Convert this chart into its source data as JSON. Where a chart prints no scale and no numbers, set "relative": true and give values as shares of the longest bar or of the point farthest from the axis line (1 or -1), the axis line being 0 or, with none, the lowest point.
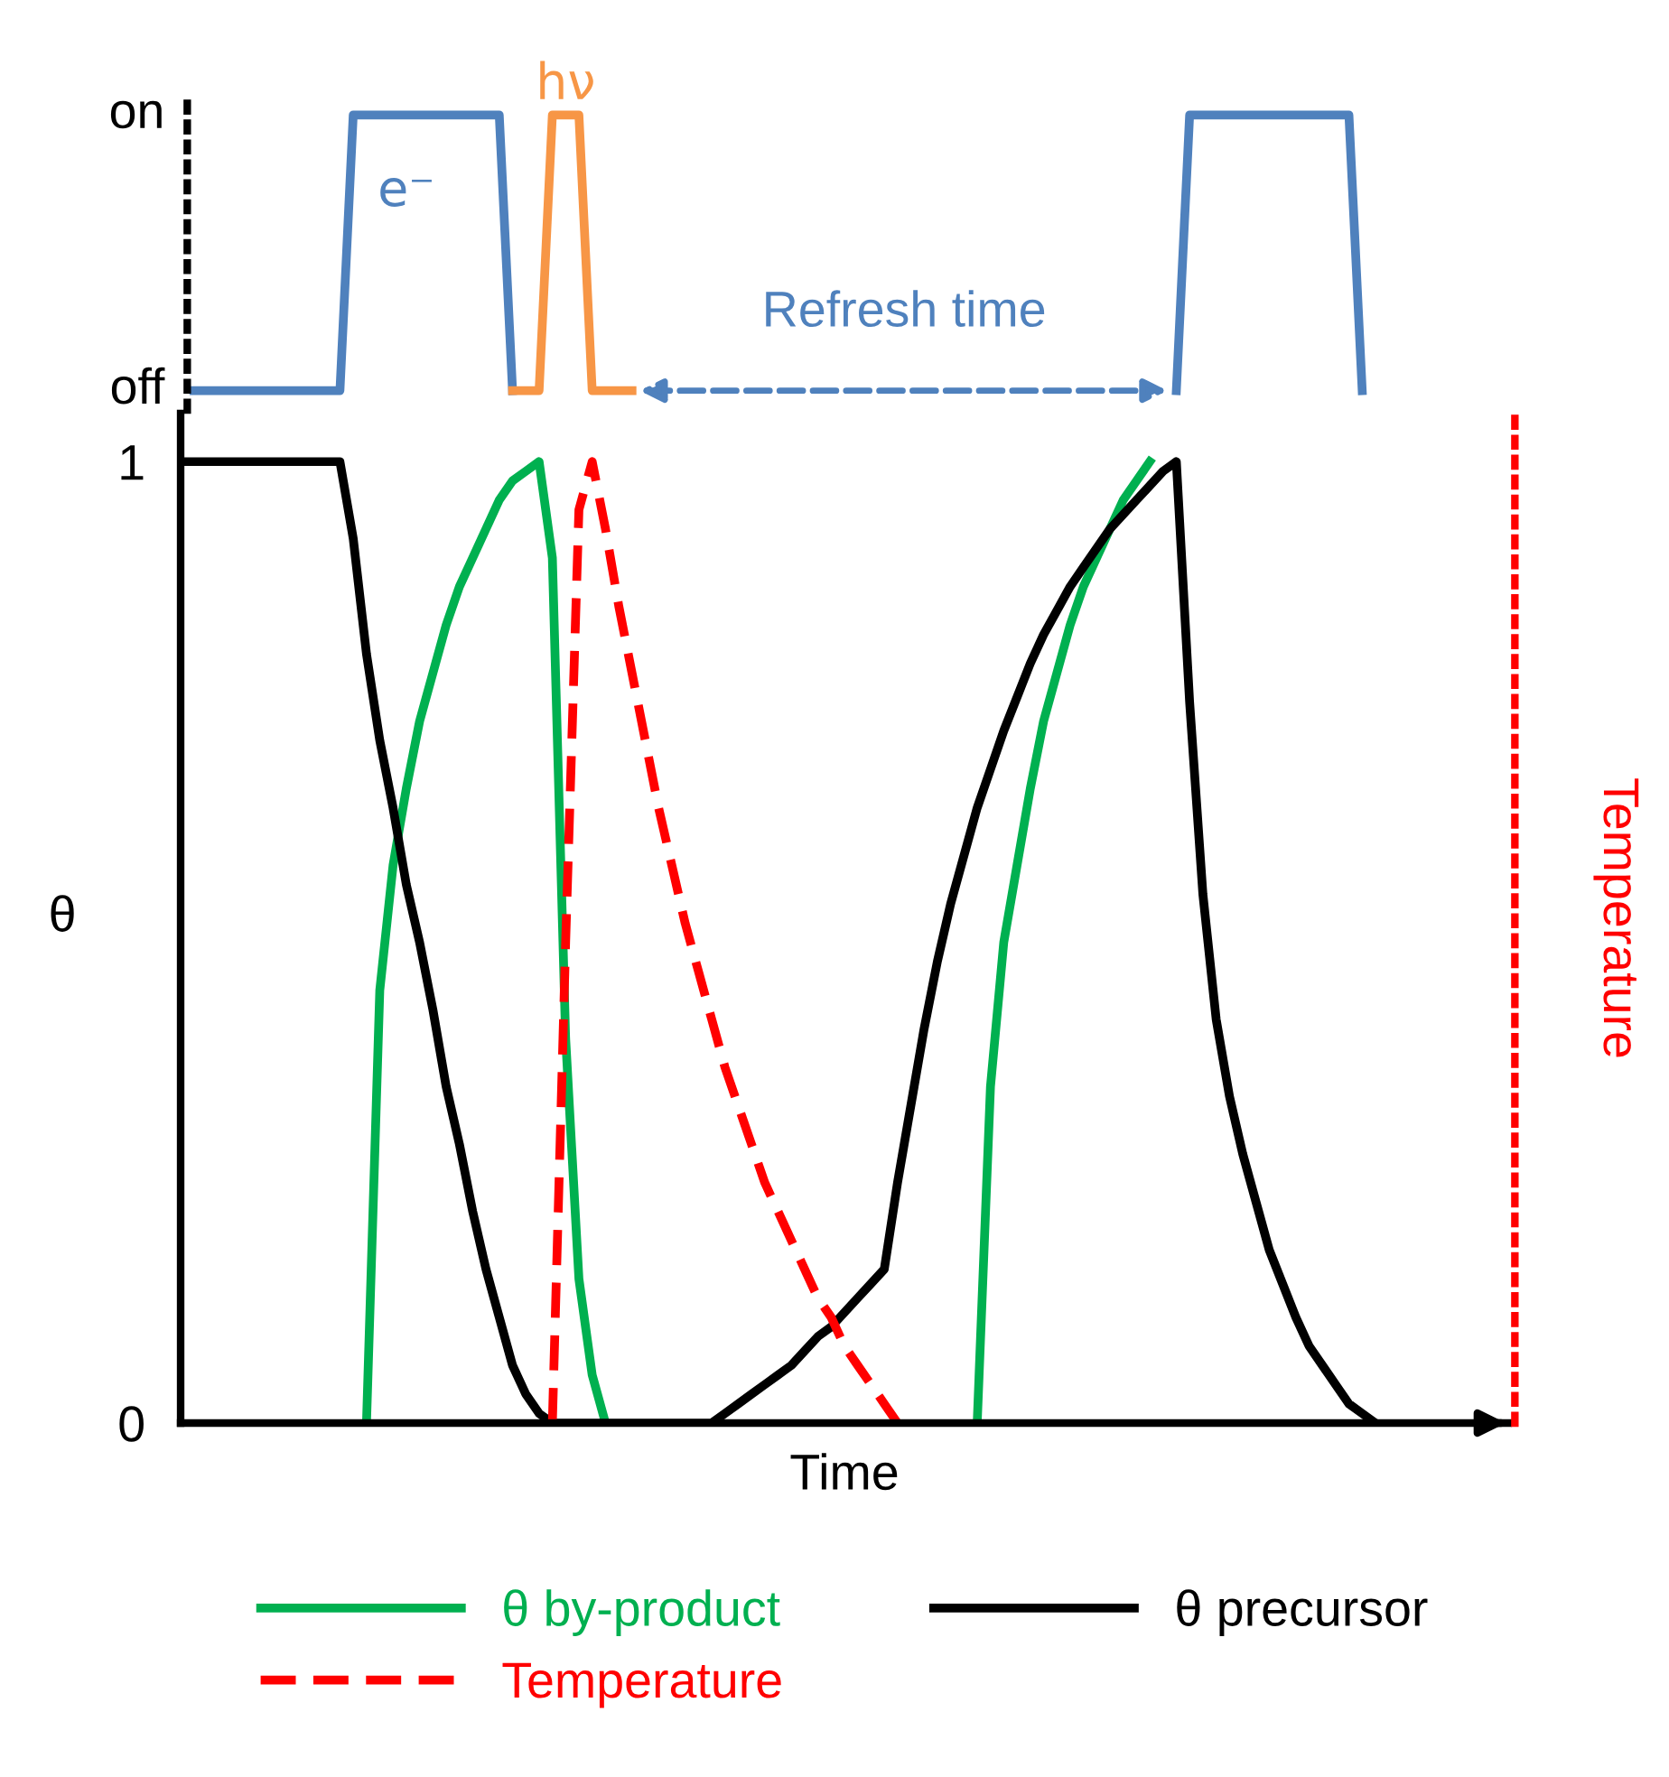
{
  "chart_data": [
    {
      "type": "line",
      "categories": [
        null,
        null,
        null,
        null,
        null,
        null,
        null,
        null,
        null,
        null,
        null,
        null,
        null,
        null,
        null,
        null,
        null,
        null,
        null,
        null,
        null,
        null,
        null,
        null,
        null,
        null,
        null,
        null,
        null,
        null,
        null,
        null,
        null,
        null,
        null,
        null,
        null,
        null,
        null,
        null,
        null,
        null,
        null,
        null,
        null,
        null,
        null,
        null,
        null,
        null,
        null,
        null,
        null,
        null,
        null,
        null,
        null,
        null,
        null,
        null,
        null,
        null,
        null,
        null,
        null,
        null,
        null,
        null,
        null,
        null,
        null,
        null,
        null,
        null,
        null,
        null,
        null,
        null,
        null,
        null,
        null,
        null,
        null,
        null,
        null,
        null,
        null,
        null,
        null,
        null,
        null,
        null,
        null,
        null,
        null,
        null,
        null,
        null,
        null,
        null,
        null
      ],
      "relative": true,
      "tick_labels": false,
      "grid": false,
      "annotations": [
        "off",
        "on",
        "Refresh time"
      ],
      "series": [
        {
          "name": "e⁻",
          "color": "#4f81bd",
          "values": [
            null,
            0,
            0,
            0,
            0,
            0,
            0,
            0,
            0,
            0,
            0,
            0,
            0,
            1,
            1,
            1,
            1,
            1,
            1,
            1,
            1,
            1,
            1,
            1,
            1,
            0,
            null,
            null,
            null,
            null,
            null,
            null,
            null,
            null,
            null,
            null,
            null,
            null,
            null,
            null,
            null,
            null,
            null,
            null,
            null,
            null,
            null,
            null,
            null,
            null,
            null,
            null,
            null,
            null,
            null,
            null,
            null,
            null,
            null,
            null,
            null,
            null,
            null,
            null,
            null,
            null,
            null,
            null,
            null,
            null,
            null,
            null,
            null,
            null,
            null,
            0,
            1,
            1,
            1,
            1,
            1,
            1,
            1,
            1,
            1,
            1,
            1,
            1,
            1,
            0,
            null,
            null,
            null,
            null,
            null,
            null,
            null,
            null,
            null,
            null,
            null
          ]
        },
        {
          "name": "hν",
          "color": "#f79646",
          "values": [
            null,
            null,
            null,
            null,
            null,
            null,
            null,
            null,
            null,
            null,
            null,
            null,
            null,
            null,
            null,
            null,
            null,
            null,
            null,
            null,
            null,
            null,
            null,
            null,
            null,
            0,
            0,
            0,
            1,
            1,
            1,
            0,
            0,
            0,
            0,
            null,
            null,
            null,
            null,
            null,
            null,
            null,
            null,
            null,
            null,
            null,
            null,
            null,
            null,
            null,
            null,
            null,
            null,
            null,
            null,
            null,
            null,
            null,
            null,
            null,
            null,
            null,
            null,
            null,
            null,
            null,
            null,
            null,
            null,
            null,
            null,
            null,
            null,
            null,
            null,
            null,
            null,
            null,
            null,
            null,
            null,
            null,
            null,
            null,
            null,
            null,
            null,
            null,
            null,
            null,
            null,
            null,
            null,
            null,
            null,
            null,
            null,
            null,
            null,
            null,
            null
          ]
        }
      ]
    },
    {
      "type": "line",
      "categories": [
        null,
        null,
        null,
        null,
        null,
        null,
        null,
        null,
        null,
        null,
        null,
        null,
        null,
        null,
        null,
        null,
        null,
        null,
        null,
        null,
        null,
        null,
        null,
        null,
        null,
        null,
        null,
        null,
        null,
        null,
        null,
        null,
        null,
        null,
        null,
        null,
        null,
        null,
        null,
        null,
        null,
        null,
        null,
        null,
        null,
        null,
        null,
        null,
        null,
        null,
        null,
        null,
        null,
        null,
        null,
        null,
        null,
        null,
        null,
        null,
        null,
        null,
        null,
        null,
        null,
        null,
        null,
        null,
        null,
        null,
        null,
        null,
        null,
        null,
        null,
        null,
        null,
        null,
        null,
        null,
        null,
        null,
        null,
        null,
        null,
        null,
        null,
        null,
        null,
        null,
        null,
        null,
        null,
        null,
        null,
        null,
        null,
        null,
        null,
        null,
        null
      ],
      "ylim": [
        0,
        1.05
      ],
      "yticks": [
        0,
        1
      ],
      "tick_labels": "y",
      "xlabel": "Time",
      "ylabel": "θ",
      "y2label": "Temperature",
      "grid": false,
      "legend": "bottom",
      "series": [
        {
          "name": "θ by-product",
          "color": "#00b050",
          "line_style": "solid",
          "values": [
            null,
            null,
            null,
            null,
            null,
            null,
            null,
            null,
            null,
            null,
            null,
            null,
            null,
            null,
            0,
            0.45,
            0.58,
            0.66,
            0.73,
            0.78,
            0.83,
            0.87,
            0.9,
            0.93,
            0.96,
            0.98,
            0.99,
            1,
            0.9,
            0.4,
            0.15,
            0.05,
            0,
            null,
            null,
            null,
            null,
            null,
            null,
            null,
            null,
            null,
            null,
            null,
            null,
            null,
            null,
            null,
            null,
            null,
            null,
            null,
            null,
            null,
            null,
            null,
            null,
            null,
            null,
            null,
            0,
            0.35,
            0.5,
            0.58,
            0.66,
            0.73,
            0.78,
            0.83,
            0.87,
            0.9,
            0.93,
            0.96,
            0.98,
            1,
            null,
            null,
            null,
            null,
            null,
            null,
            null,
            null,
            null,
            null,
            null,
            null,
            null,
            null,
            null,
            null,
            null,
            null,
            null,
            null,
            null,
            null,
            null,
            null,
            null,
            null,
            null
          ]
        },
        {
          "name": "θ precursor",
          "color": "#000000",
          "line_style": "solid",
          "values": [
            1,
            1,
            1,
            1,
            1,
            1,
            1,
            1,
            1,
            1,
            1,
            1,
            1,
            0.92,
            0.8,
            0.71,
            0.64,
            0.56,
            0.5,
            0.43,
            0.35,
            0.29,
            0.22,
            0.16,
            0.11,
            0.06,
            0.03,
            0.01,
            0,
            0,
            0,
            0,
            0,
            0,
            0,
            0,
            0,
            0,
            0,
            0,
            0,
            0.01,
            0.02,
            0.03,
            0.04,
            0.05,
            0.06,
            0.075,
            0.09,
            0.1,
            0.115,
            0.13,
            0.145,
            0.16,
            0.25,
            0.33,
            0.41,
            0.48,
            0.54,
            0.59,
            0.64,
            0.68,
            0.72,
            0.755,
            0.79,
            0.82,
            0.845,
            0.87,
            0.89,
            0.91,
            0.93,
            0.945,
            0.96,
            0.975,
            0.99,
            1,
            0.75,
            0.55,
            0.42,
            0.34,
            0.28,
            0.23,
            0.18,
            0.145,
            0.11,
            0.08,
            0.06,
            0.04,
            0.02,
            0.01,
            0,
            null,
            null,
            null,
            null,
            null,
            null,
            null,
            null,
            null,
            null
          ]
        },
        {
          "name": "Temperature",
          "color": "#ff0000",
          "line_style": "dashed",
          "values": [
            null,
            null,
            null,
            null,
            null,
            null,
            null,
            null,
            null,
            null,
            null,
            null,
            null,
            null,
            null,
            null,
            null,
            null,
            null,
            null,
            null,
            null,
            null,
            null,
            null,
            null,
            null,
            null,
            0,
            0.5,
            0.95,
            1,
            0.93,
            0.85,
            0.78,
            0.71,
            0.64,
            0.58,
            0.52,
            0.47,
            0.42,
            0.37,
            0.33,
            0.29,
            0.25,
            0.22,
            0.19,
            0.16,
            0.13,
            0.11,
            0.08,
            0.06,
            0.04,
            0.02,
            0,
            null,
            null,
            null,
            null,
            null,
            null,
            null,
            null,
            null,
            null,
            null,
            null,
            null,
            null,
            null,
            null,
            null,
            null,
            null,
            null,
            null,
            null,
            null,
            null,
            null,
            null,
            null,
            null,
            null,
            null,
            null,
            null,
            null,
            null,
            null,
            null,
            null,
            null,
            null,
            null,
            null,
            null,
            null,
            null,
            null,
            null
          ]
        }
      ]
    }
  ]
}
